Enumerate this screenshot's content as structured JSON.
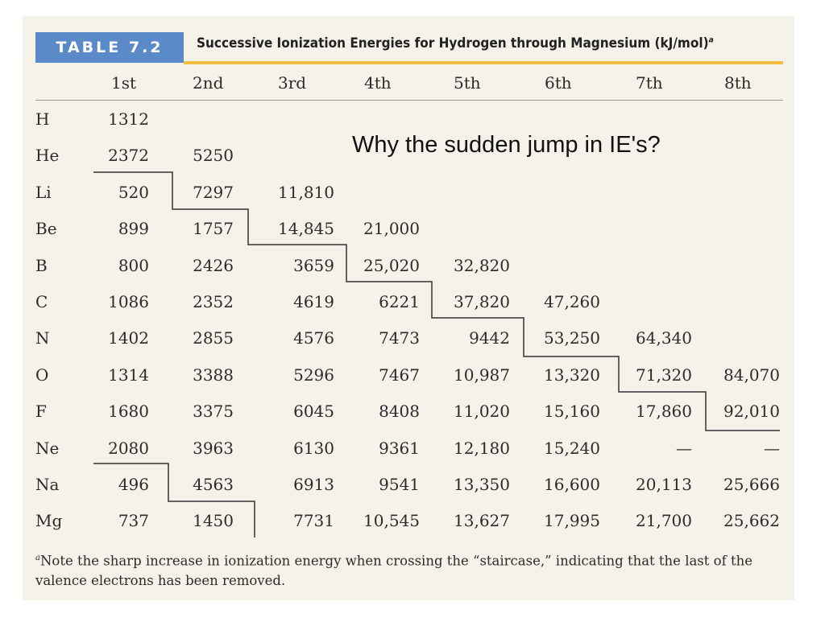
{
  "table_label": "TABLE 7.2",
  "table_title": "Successive Ionization Energies for Hydrogen through Magnesium (kJ/mol)",
  "title_footnote_mark": "a",
  "callout": "Why the sudden jump in IE's?",
  "columns": [
    "1st",
    "2nd",
    "3rd",
    "4th",
    "5th",
    "6th",
    "7th",
    "8th"
  ],
  "rows": [
    {
      "symbol": "H",
      "values": [
        "1312",
        "",
        "",
        "",
        "",
        "",
        "",
        ""
      ]
    },
    {
      "symbol": "He",
      "values": [
        "2372",
        "5250",
        "",
        "",
        "",
        "",
        "",
        ""
      ]
    },
    {
      "symbol": "Li",
      "values": [
        "520",
        "7297",
        "11,810",
        "",
        "",
        "",
        "",
        ""
      ]
    },
    {
      "symbol": "Be",
      "values": [
        "899",
        "1757",
        "14,845",
        "21,000",
        "",
        "",
        "",
        ""
      ]
    },
    {
      "symbol": "B",
      "values": [
        "800",
        "2426",
        "3659",
        "25,020",
        "32,820",
        "",
        "",
        ""
      ]
    },
    {
      "symbol": "C",
      "values": [
        "1086",
        "2352",
        "4619",
        "6221",
        "37,820",
        "47,260",
        "",
        ""
      ]
    },
    {
      "symbol": "N",
      "values": [
        "1402",
        "2855",
        "4576",
        "7473",
        "9442",
        "53,250",
        "64,340",
        ""
      ]
    },
    {
      "symbol": "O",
      "values": [
        "1314",
        "3388",
        "5296",
        "7467",
        "10,987",
        "13,320",
        "71,320",
        "84,070"
      ]
    },
    {
      "symbol": "F",
      "values": [
        "1680",
        "3375",
        "6045",
        "8408",
        "11,020",
        "15,160",
        "17,860",
        "92,010"
      ]
    },
    {
      "symbol": "Ne",
      "values": [
        "2080",
        "3963",
        "6130",
        "9361",
        "12,180",
        "15,240",
        "—",
        "—"
      ]
    },
    {
      "symbol": "Na",
      "values": [
        "496",
        "4563",
        "6913",
        "9541",
        "13,350",
        "16,600",
        "20,113",
        "25,666"
      ]
    },
    {
      "symbol": "Mg",
      "values": [
        "737",
        "1450",
        "7731",
        "10,545",
        "13,627",
        "17,995",
        "21,700",
        "25,662"
      ]
    }
  ],
  "footnote_mark": "a",
  "footnote": "Note the sharp increase in ionization energy when crossing the “staircase,” indicating that the last of the valence electrons has been removed."
}
